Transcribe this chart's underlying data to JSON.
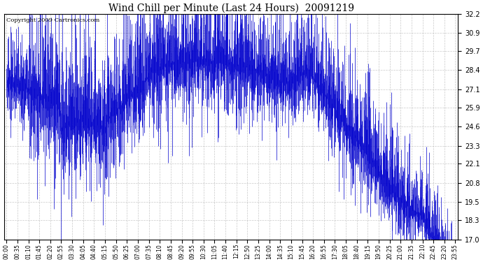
{
  "title": "Wind Chill per Minute (Last 24 Hours)  20091219",
  "copyright": "Copyright 2009 Cartronics.com",
  "bar_color": "#0000cc",
  "background_color": "#ffffff",
  "plot_bg_color": "#ffffff",
  "grid_color": "#bbbbbb",
  "ylim": [
    17.0,
    32.2
  ],
  "yticks": [
    17.0,
    18.3,
    19.5,
    20.8,
    22.1,
    23.3,
    24.6,
    25.9,
    27.1,
    28.4,
    29.7,
    30.9,
    32.2
  ],
  "xtick_labels": [
    "00:00",
    "00:35",
    "01:10",
    "01:45",
    "02:20",
    "02:55",
    "03:30",
    "04:05",
    "04:40",
    "05:15",
    "05:50",
    "06:25",
    "07:00",
    "07:35",
    "08:10",
    "08:45",
    "09:20",
    "09:55",
    "10:30",
    "11:05",
    "11:40",
    "12:15",
    "12:50",
    "13:25",
    "14:00",
    "14:35",
    "15:10",
    "15:45",
    "16:20",
    "16:55",
    "17:30",
    "18:05",
    "18:40",
    "19:15",
    "19:50",
    "20:25",
    "21:00",
    "21:35",
    "22:10",
    "22:45",
    "23:20",
    "23:55"
  ],
  "n_points": 1440,
  "seed": 42,
  "figwidth": 6.9,
  "figheight": 3.75,
  "dpi": 100
}
